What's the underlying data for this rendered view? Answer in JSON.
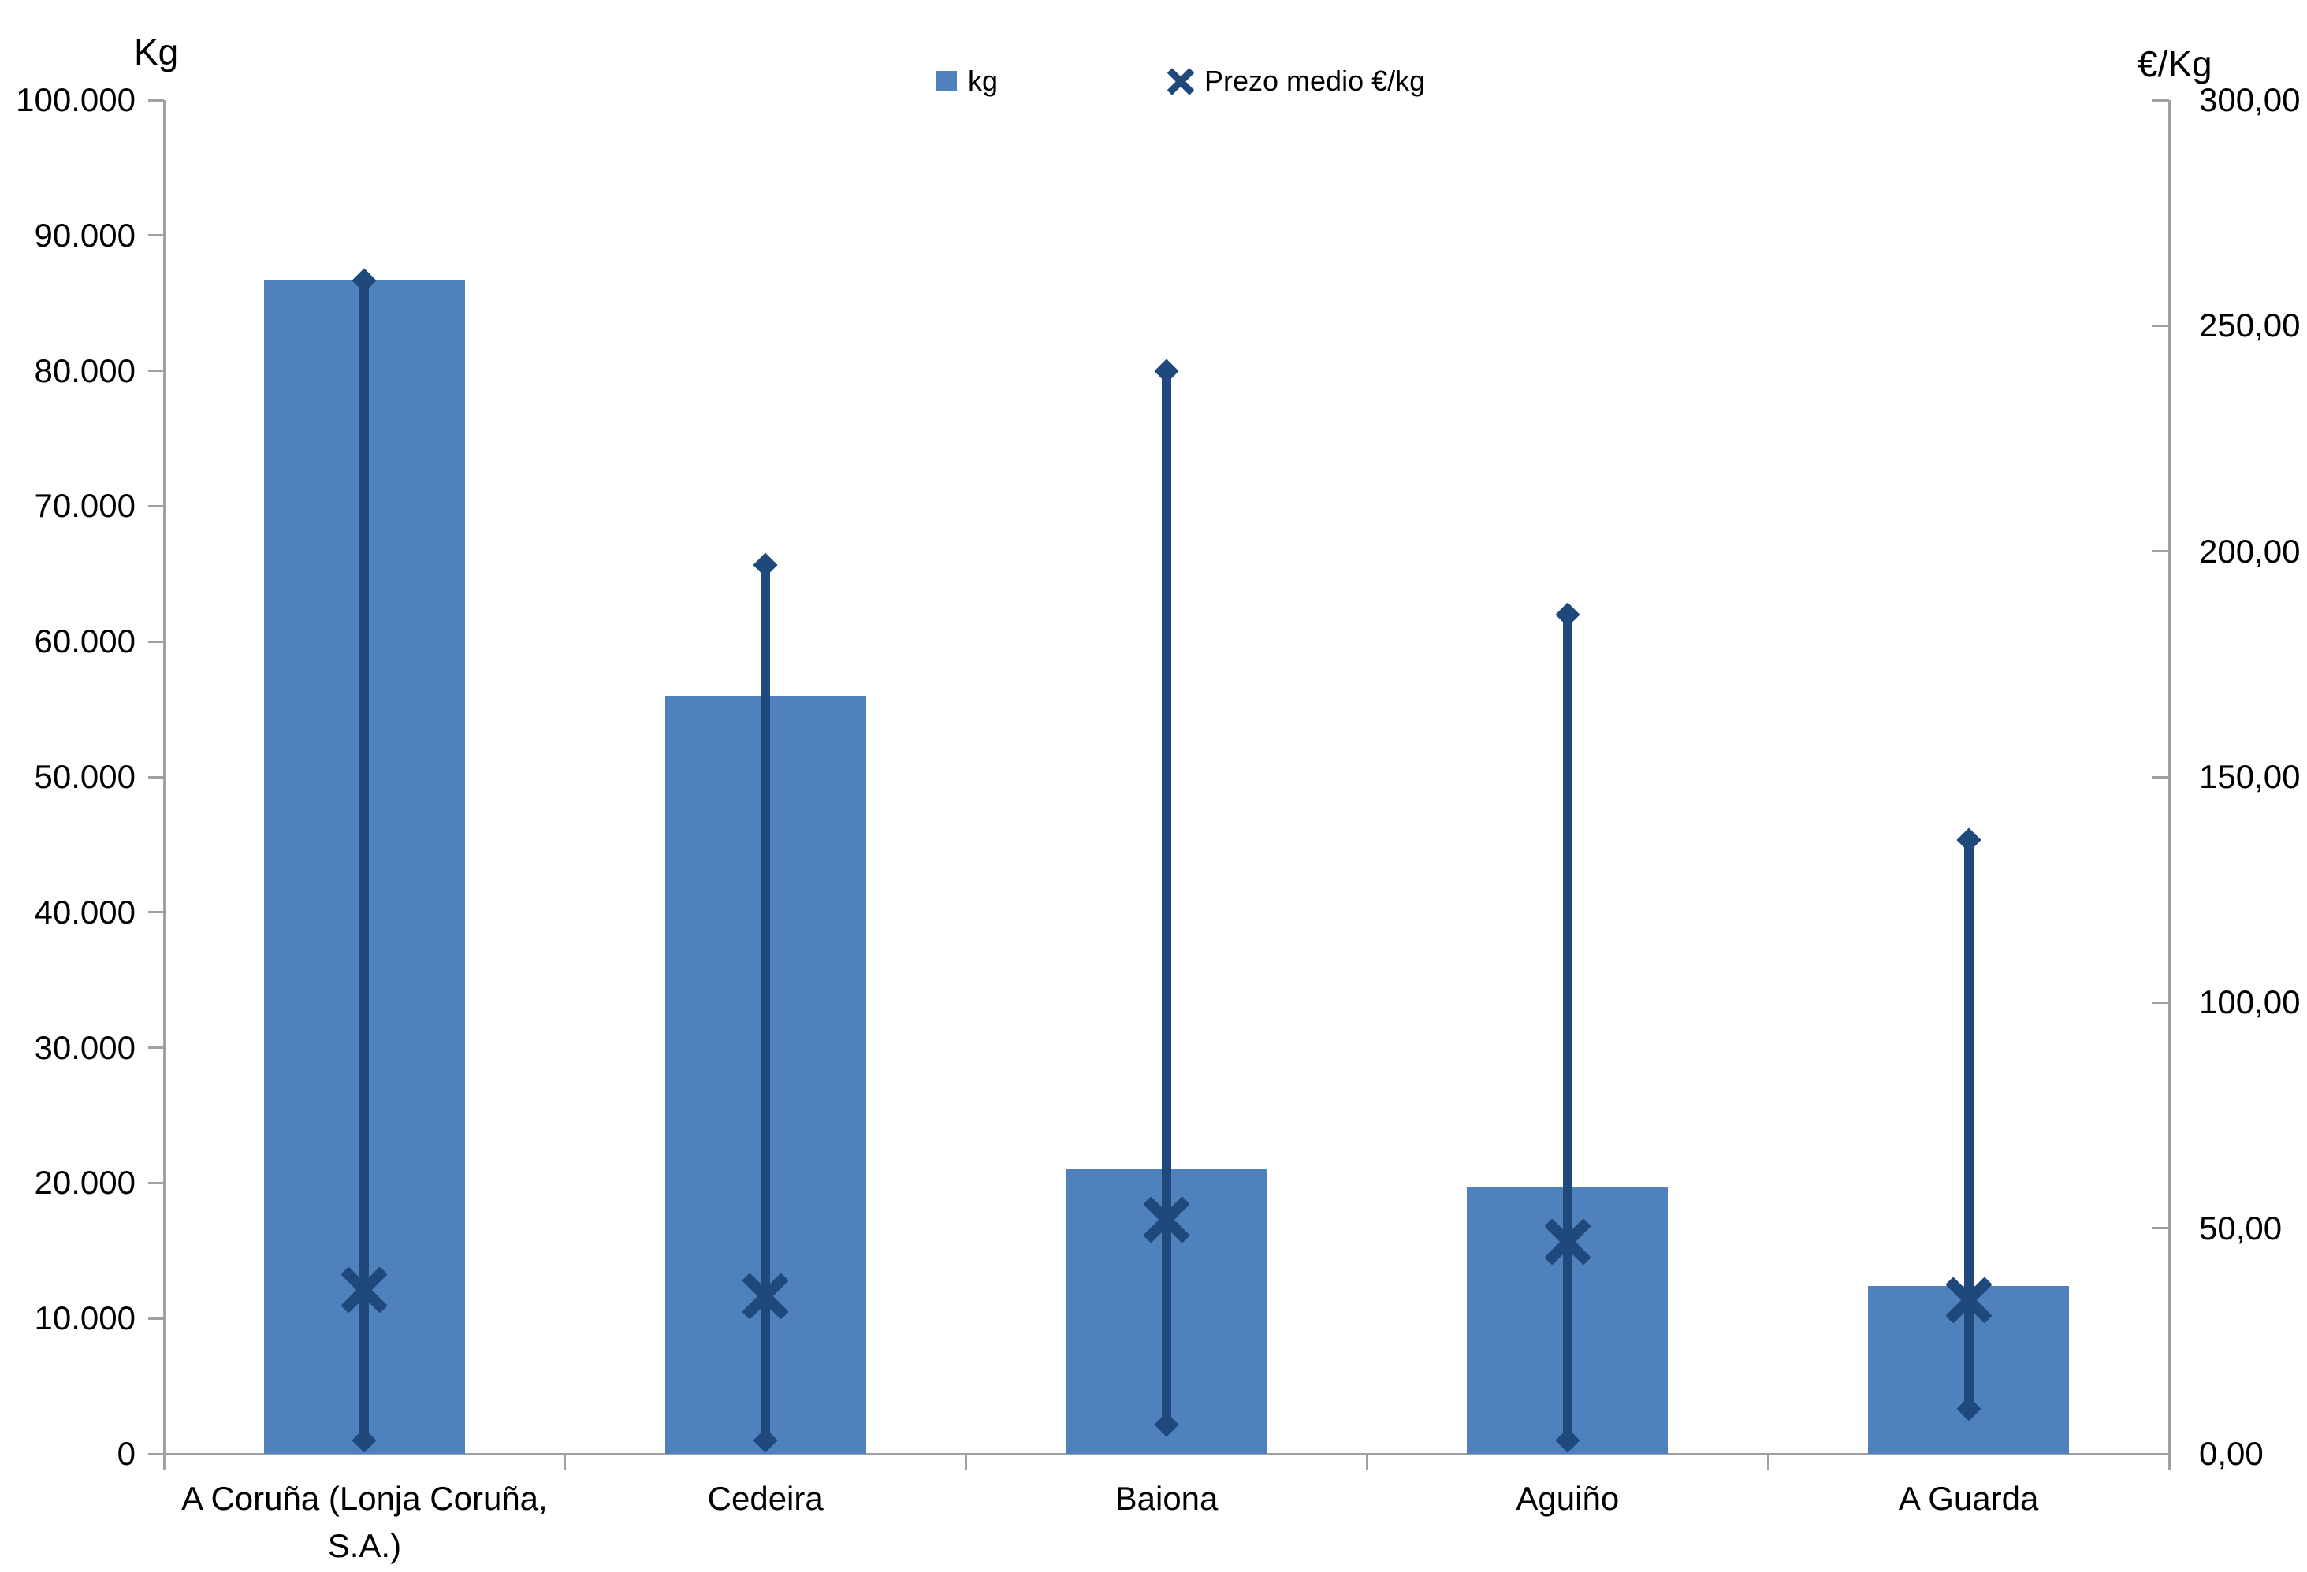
{
  "chart_data": {
    "type": "bar",
    "title": "",
    "categories": [
      "A Coruña (Lonja Coruña, S.A.)",
      "Cedeira",
      "Baiona",
      "Aguiño",
      "A Guarda"
    ],
    "series": [
      {
        "name": "kg",
        "type": "bar",
        "axis": "left",
        "values": [
          86700,
          56000,
          21000,
          19700,
          12400
        ]
      },
      {
        "name": "Prezo medio €/kg",
        "type": "high-low-average",
        "axis": "right",
        "average": [
          36.3,
          35,
          51.8,
          47,
          34
        ],
        "high": [
          260,
          197,
          240,
          186,
          136
        ],
        "low": [
          3,
          3,
          6.5,
          3,
          10
        ]
      }
    ],
    "left_axis": {
      "title": "Kg",
      "min": 0,
      "max": 100000,
      "tick_step": 10000,
      "tick_labels": [
        "100.000",
        "90.000",
        "80.000",
        "70.000",
        "60.000",
        "50.000",
        "40.000",
        "30.000",
        "20.000",
        "10.000",
        "0"
      ]
    },
    "right_axis": {
      "title": "€/Kg",
      "min": 0,
      "max": 300,
      "tick_step": 50,
      "tick_labels": [
        "300,00",
        "250,00",
        "200,00",
        "150,00",
        "100,00",
        "50,00",
        "0,00"
      ]
    },
    "legend": {
      "position": "top-center",
      "items": [
        {
          "label": "kg",
          "marker": "square"
        },
        {
          "label": "Prezo medio €/kg",
          "marker": "x"
        }
      ]
    },
    "grid": false,
    "colors": {
      "bar": "#4F81BD",
      "line": "#1F497D",
      "axis": "#A0A0A0",
      "text": "#000000",
      "background": "#FFFFFF"
    }
  }
}
